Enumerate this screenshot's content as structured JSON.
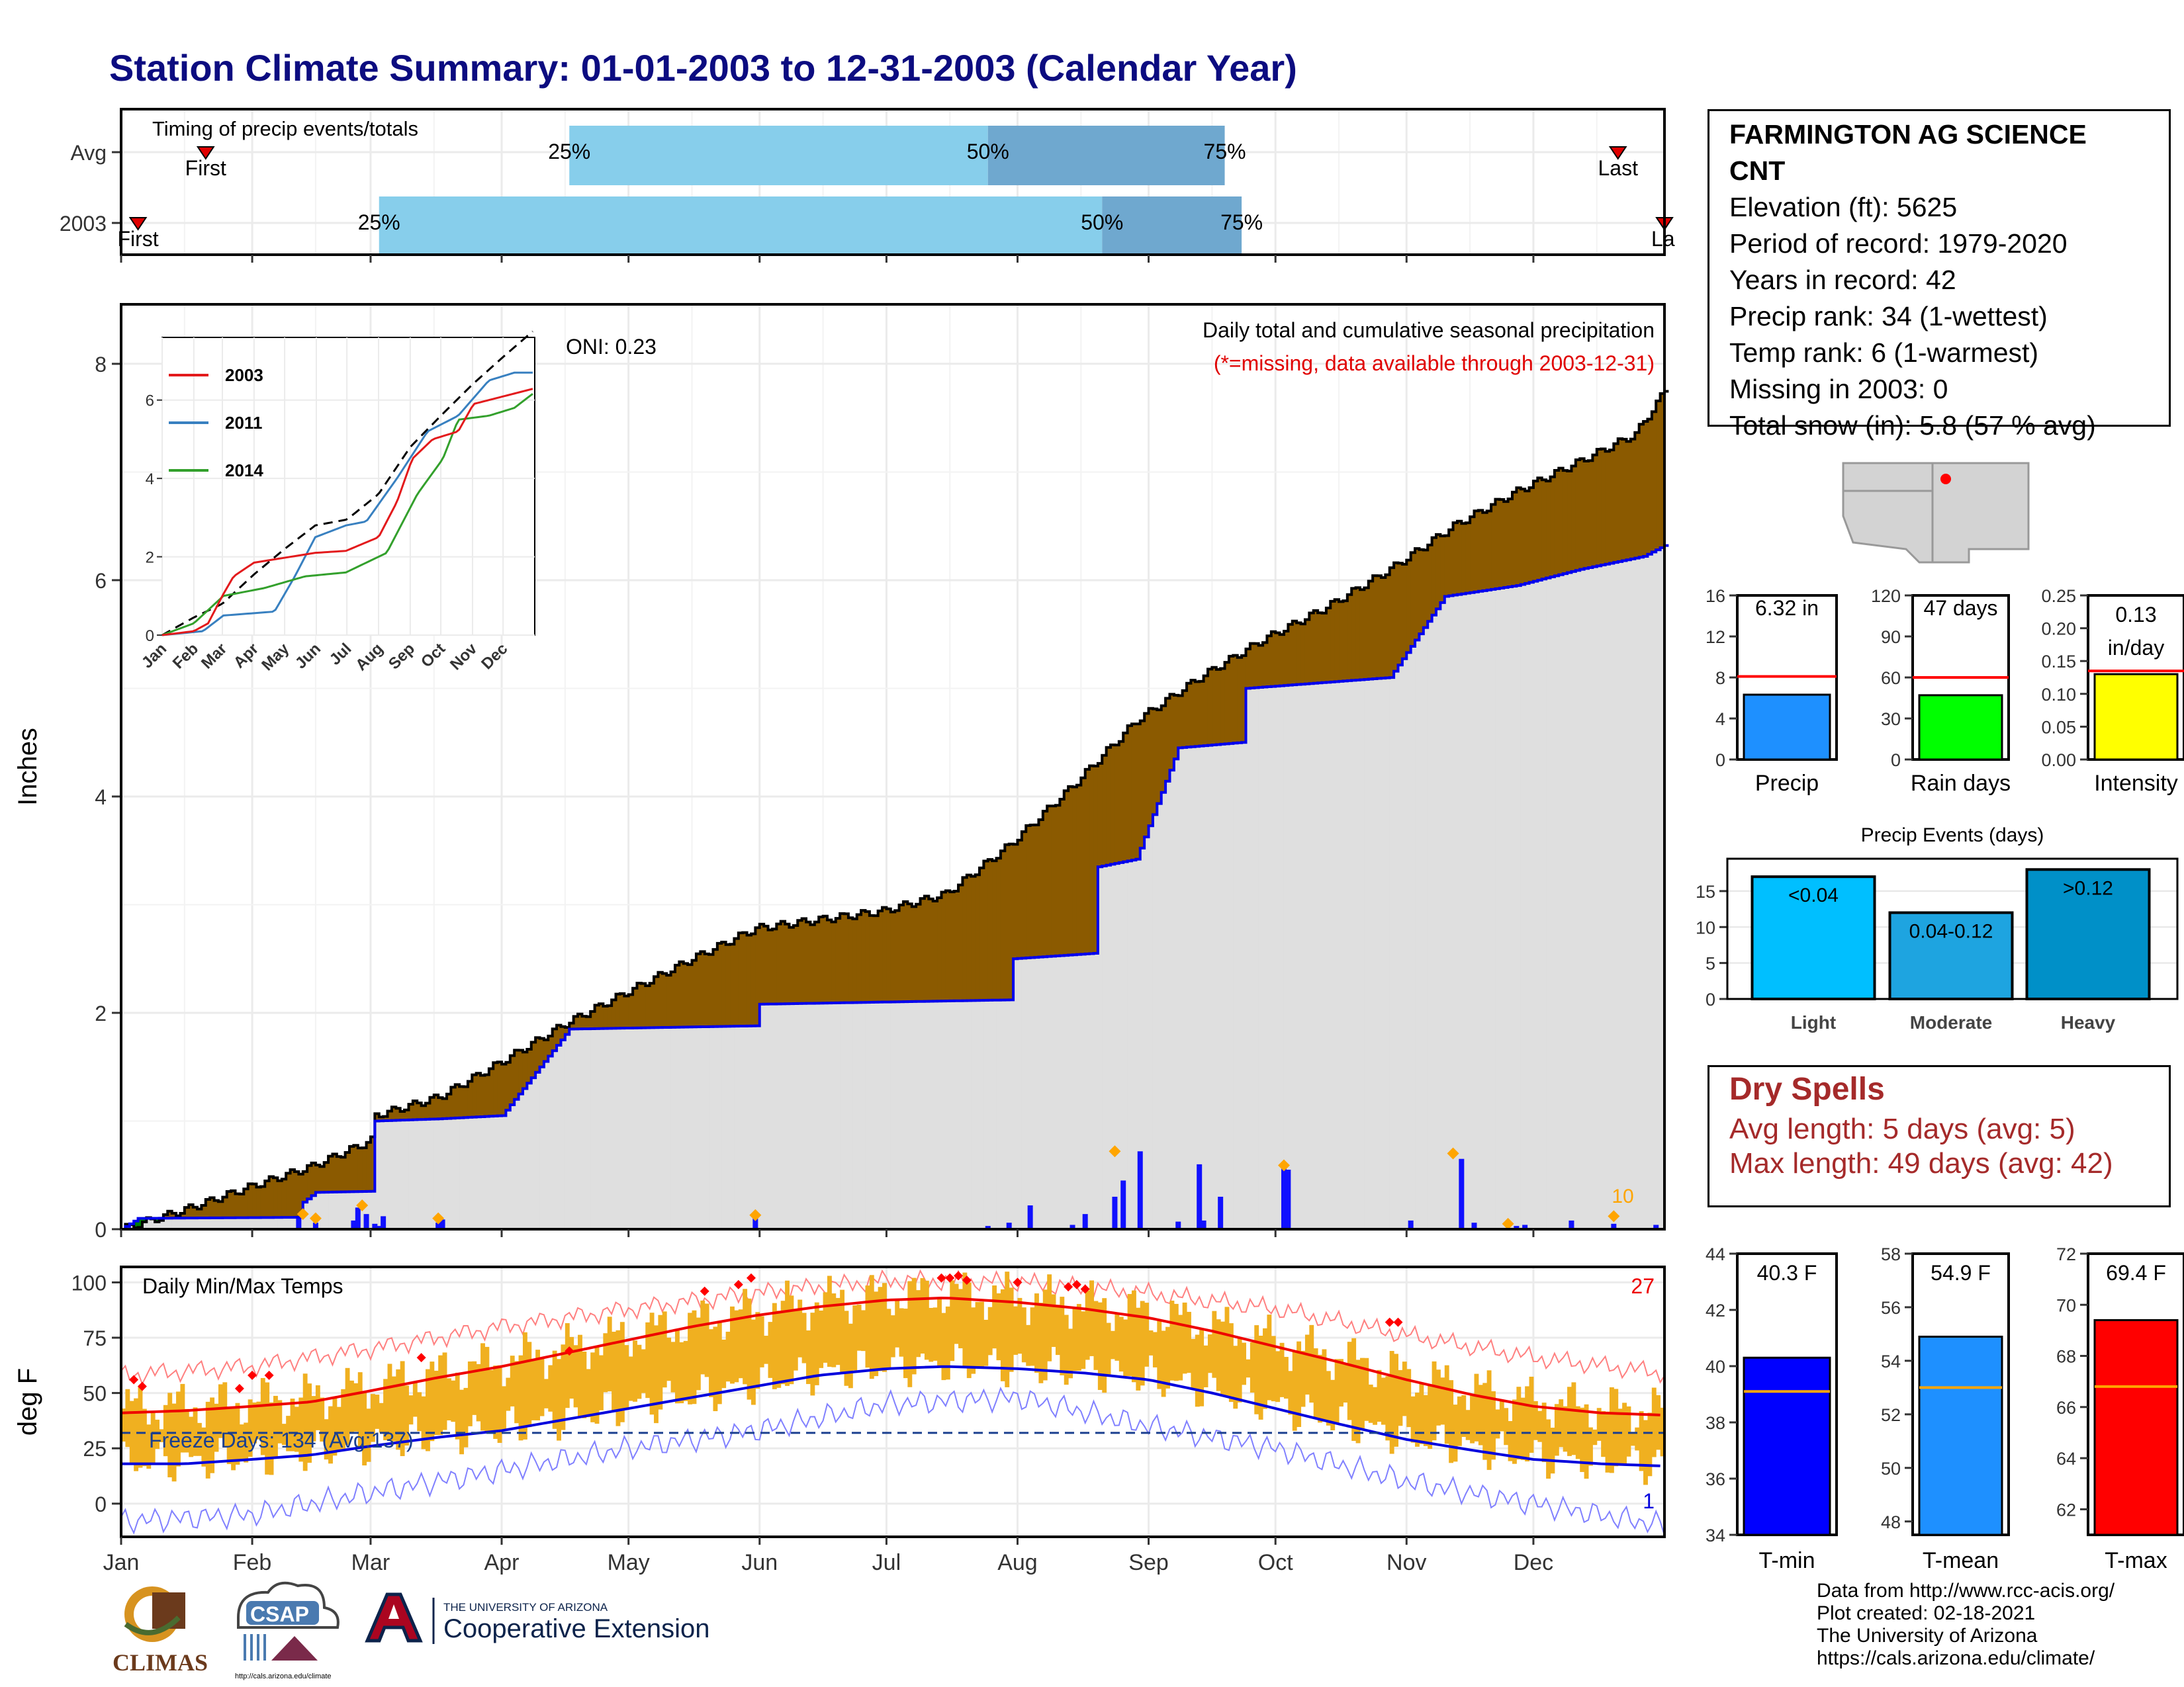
{
  "title": "Station Climate Summary: 01-01-2003 to 12-31-2003 (Calendar Year)",
  "months": [
    "Jan",
    "Feb",
    "Mar",
    "Apr",
    "May",
    "Jun",
    "Jul",
    "Aug",
    "Sep",
    "Oct",
    "Nov",
    "Dec"
  ],
  "station": {
    "name_line1": "FARMINGTON AG SCIENCE",
    "name_line2": "CNT",
    "elevation": "Elevation (ft): 5625",
    "period": "Period of record: 1979-2020",
    "years": "Years in record: 42",
    "precip_rank": "Precip rank: 34 (1-wettest)",
    "temp_rank": "Temp rank: 6 (1-warmest)",
    "missing": "Missing in 2003: 0",
    "snow": "Total snow (in): 5.8 (57 % avg)"
  },
  "timing": {
    "title": "Timing of precip events/totals",
    "avg_label": "Avg",
    "year_label": "2003",
    "first": "First",
    "last": "Last",
    "last_clipped": "La",
    "pct25": "25%",
    "pct50": "50%",
    "pct75": "75%",
    "avg_doy": {
      "first": 20,
      "p25": 106,
      "p50": 205,
      "p75": 261,
      "last": 354
    },
    "year_doy": {
      "first": 4,
      "p25": 61,
      "p50": 232,
      "p75": 265,
      "last": 365
    }
  },
  "precip": {
    "ylabel": "Inches",
    "header": "Daily total and cumulative seasonal precipitation",
    "missing_note": "(*=missing, data available through 2003-12-31)",
    "oni": "ONI: 0.23",
    "event_count": "10",
    "yticks": [
      "0",
      "2",
      "4",
      "6",
      "8"
    ],
    "avg_cum": [
      [
        0,
        0
      ],
      [
        15,
        0.18
      ],
      [
        31,
        0.4
      ],
      [
        45,
        0.58
      ],
      [
        59,
        0.82
      ],
      [
        60,
        1.05
      ],
      [
        75,
        1.22
      ],
      [
        90,
        1.55
      ],
      [
        105,
        1.9
      ],
      [
        120,
        2.2
      ],
      [
        135,
        2.5
      ],
      [
        150,
        2.78
      ],
      [
        165,
        2.86
      ],
      [
        180,
        2.94
      ],
      [
        195,
        3.1
      ],
      [
        210,
        3.55
      ],
      [
        225,
        4.1
      ],
      [
        240,
        4.7
      ],
      [
        255,
        5.1
      ],
      [
        270,
        5.45
      ],
      [
        285,
        5.75
      ],
      [
        300,
        6.1
      ],
      [
        315,
        6.5
      ],
      [
        330,
        6.82
      ],
      [
        345,
        7.1
      ],
      [
        358,
        7.35
      ],
      [
        365,
        7.75
      ]
    ],
    "year_cum": [
      [
        0,
        0
      ],
      [
        4,
        0.1
      ],
      [
        42,
        0.11
      ],
      [
        43,
        0.25
      ],
      [
        46,
        0.34
      ],
      [
        59,
        0.35
      ],
      [
        60,
        1.0
      ],
      [
        75,
        1.02
      ],
      [
        90,
        1.05
      ],
      [
        106,
        1.85
      ],
      [
        150,
        1.88
      ],
      [
        151,
        2.08
      ],
      [
        210,
        2.12
      ],
      [
        211,
        2.5
      ],
      [
        230,
        2.55
      ],
      [
        231,
        3.35
      ],
      [
        240,
        3.42
      ],
      [
        250,
        4.45
      ],
      [
        265,
        4.5
      ],
      [
        266,
        5.0
      ],
      [
        300,
        5.1
      ],
      [
        313,
        5.85
      ],
      [
        330,
        5.95
      ],
      [
        345,
        6.1
      ],
      [
        360,
        6.22
      ],
      [
        365,
        6.32
      ]
    ],
    "daily": [
      [
        42,
        0.1
      ],
      [
        46,
        0.06
      ],
      [
        55,
        0.08
      ],
      [
        56,
        0.2
      ],
      [
        58,
        0.14
      ],
      [
        60,
        0.05
      ],
      [
        61,
        0.03
      ],
      [
        62,
        0.12
      ],
      [
        75,
        0.06
      ],
      [
        76,
        0.09
      ],
      [
        100,
        0.01
      ],
      [
        150,
        0.1
      ],
      [
        205,
        0.03
      ],
      [
        210,
        0.06
      ],
      [
        215,
        0.22
      ],
      [
        225,
        0.04
      ],
      [
        228,
        0.14
      ],
      [
        235,
        0.3
      ],
      [
        237,
        0.45
      ],
      [
        240,
        0.01
      ],
      [
        241,
        0.72
      ],
      [
        250,
        0.07
      ],
      [
        255,
        0.6
      ],
      [
        256,
        0.08
      ],
      [
        260,
        0.3
      ],
      [
        275,
        0.62
      ],
      [
        276,
        0.55
      ],
      [
        305,
        0.08
      ],
      [
        317,
        0.65
      ],
      [
        320,
        0.06
      ],
      [
        330,
        0.03
      ],
      [
        332,
        0.04
      ],
      [
        343,
        0.08
      ],
      [
        353,
        0.05
      ],
      [
        363,
        0.04
      ]
    ],
    "event_markers": [
      [
        43,
        0.14
      ],
      [
        46,
        0.1
      ],
      [
        57,
        0.22
      ],
      [
        75,
        0.1
      ],
      [
        150,
        0.13
      ],
      [
        235,
        0.72
      ],
      [
        275,
        0.59
      ],
      [
        315,
        0.7
      ],
      [
        328,
        0.05
      ],
      [
        353,
        0.12
      ]
    ]
  },
  "inset": {
    "legend": [
      "2003",
      "2011",
      "2014"
    ],
    "colors": {
      "2003": "#e31a1c",
      "2011": "#3880c0",
      "2014": "#33a02c"
    },
    "yticks": [
      "0",
      "2",
      "4",
      "6"
    ],
    "xticks": [
      "Jan",
      "Feb",
      "Mar",
      "Apr",
      "May",
      "Jun",
      "Jul",
      "Aug",
      "Sep",
      "Oct",
      "Nov",
      "Dec"
    ],
    "avg": [
      [
        0,
        0
      ],
      [
        31,
        0.45
      ],
      [
        59,
        0.8
      ],
      [
        90,
        1.55
      ],
      [
        120,
        2.2
      ],
      [
        150,
        2.8
      ],
      [
        181,
        2.95
      ],
      [
        212,
        3.6
      ],
      [
        243,
        4.8
      ],
      [
        273,
        5.6
      ],
      [
        304,
        6.4
      ],
      [
        334,
        7.1
      ],
      [
        365,
        7.8
      ]
    ],
    "s2003": [
      [
        0,
        0
      ],
      [
        31,
        0.1
      ],
      [
        45,
        0.3
      ],
      [
        60,
        1.05
      ],
      [
        70,
        1.5
      ],
      [
        90,
        1.85
      ],
      [
        150,
        2.1
      ],
      [
        180,
        2.15
      ],
      [
        212,
        2.5
      ],
      [
        230,
        3.4
      ],
      [
        245,
        4.5
      ],
      [
        265,
        5.0
      ],
      [
        290,
        5.2
      ],
      [
        305,
        5.9
      ],
      [
        335,
        6.1
      ],
      [
        365,
        6.3
      ]
    ],
    "s2011": [
      [
        0,
        0
      ],
      [
        40,
        0.1
      ],
      [
        60,
        0.5
      ],
      [
        110,
        0.6
      ],
      [
        130,
        1.5
      ],
      [
        150,
        2.5
      ],
      [
        180,
        2.8
      ],
      [
        200,
        2.9
      ],
      [
        230,
        4.0
      ],
      [
        260,
        5.2
      ],
      [
        290,
        5.6
      ],
      [
        320,
        6.5
      ],
      [
        345,
        6.7
      ],
      [
        365,
        6.7
      ]
    ],
    "s2014": [
      [
        0,
        0
      ],
      [
        31,
        0.3
      ],
      [
        60,
        1.0
      ],
      [
        100,
        1.2
      ],
      [
        140,
        1.5
      ],
      [
        180,
        1.6
      ],
      [
        220,
        2.1
      ],
      [
        250,
        3.6
      ],
      [
        275,
        4.5
      ],
      [
        290,
        5.5
      ],
      [
        320,
        5.6
      ],
      [
        345,
        5.8
      ],
      [
        365,
        6.2
      ]
    ]
  },
  "temps": {
    "ylabel": "deg F",
    "title": "Daily Min/Max Temps",
    "freeze": "Freeze Days: 134 (Avg:137)",
    "record_high_count": "27",
    "record_low_count": "1",
    "yticks": [
      "0",
      "25",
      "50",
      "75",
      "100"
    ],
    "freeze_line": 32,
    "avg_max": [
      [
        0,
        41
      ],
      [
        15,
        42
      ],
      [
        31,
        44
      ],
      [
        45,
        46
      ],
      [
        59,
        51
      ],
      [
        75,
        57
      ],
      [
        90,
        62
      ],
      [
        105,
        68
      ],
      [
        120,
        74
      ],
      [
        135,
        80
      ],
      [
        150,
        85
      ],
      [
        165,
        89
      ],
      [
        181,
        92
      ],
      [
        195,
        93
      ],
      [
        212,
        91
      ],
      [
        228,
        88
      ],
      [
        243,
        84
      ],
      [
        258,
        78
      ],
      [
        273,
        71
      ],
      [
        288,
        64
      ],
      [
        304,
        56
      ],
      [
        320,
        49
      ],
      [
        334,
        44
      ],
      [
        350,
        41
      ],
      [
        365,
        40
      ]
    ],
    "avg_min": [
      [
        0,
        18
      ],
      [
        15,
        18
      ],
      [
        31,
        20
      ],
      [
        45,
        22
      ],
      [
        59,
        26
      ],
      [
        75,
        30
      ],
      [
        90,
        33
      ],
      [
        105,
        38
      ],
      [
        120,
        43
      ],
      [
        135,
        48
      ],
      [
        150,
        53
      ],
      [
        165,
        58
      ],
      [
        181,
        61
      ],
      [
        195,
        62
      ],
      [
        212,
        61
      ],
      [
        228,
        59
      ],
      [
        243,
        56
      ],
      [
        258,
        50
      ],
      [
        273,
        43
      ],
      [
        288,
        36
      ],
      [
        304,
        29
      ],
      [
        320,
        24
      ],
      [
        334,
        20
      ],
      [
        350,
        18
      ],
      [
        365,
        17
      ]
    ],
    "rec_max": [
      [
        0,
        58
      ],
      [
        31,
        62
      ],
      [
        59,
        70
      ],
      [
        90,
        80
      ],
      [
        120,
        88
      ],
      [
        150,
        95
      ],
      [
        181,
        101
      ],
      [
        212,
        100
      ],
      [
        243,
        95
      ],
      [
        273,
        88
      ],
      [
        304,
        76
      ],
      [
        334,
        66
      ],
      [
        365,
        59
      ]
    ],
    "rec_min": [
      [
        0,
        -8
      ],
      [
        31,
        -5
      ],
      [
        59,
        5
      ],
      [
        90,
        15
      ],
      [
        120,
        25
      ],
      [
        150,
        33
      ],
      [
        181,
        45
      ],
      [
        212,
        48
      ],
      [
        243,
        35
      ],
      [
        273,
        25
      ],
      [
        304,
        10
      ],
      [
        334,
        0
      ],
      [
        365,
        -10
      ]
    ],
    "record_dots": [
      [
        3,
        56
      ],
      [
        5,
        53
      ],
      [
        28,
        52
      ],
      [
        31,
        58
      ],
      [
        35,
        58
      ],
      [
        71,
        66
      ],
      [
        106,
        69
      ],
      [
        138,
        96
      ],
      [
        146,
        99
      ],
      [
        149,
        102
      ],
      [
        194,
        102
      ],
      [
        196,
        102
      ],
      [
        198,
        103
      ],
      [
        200,
        101
      ],
      [
        212,
        100
      ],
      [
        224,
        98
      ],
      [
        226,
        99
      ],
      [
        228,
        97
      ],
      [
        300,
        82
      ],
      [
        302,
        82
      ]
    ]
  },
  "summary": {
    "precip": {
      "label": "Precip",
      "value": "6.32 in",
      "v": 6.32,
      "avg": 8.1,
      "ymax": 16,
      "yticks": [
        "0",
        "4",
        "8",
        "12",
        "16"
      ],
      "color": "#1e90ff"
    },
    "raindays": {
      "label": "Rain days",
      "value": "47 days",
      "v": 47,
      "avg": 60,
      "ymax": 120,
      "yticks": [
        "0",
        "30",
        "60",
        "90",
        "120"
      ],
      "color": "#00ff00"
    },
    "intensity": {
      "label": "Intensity",
      "value": "0.13",
      "unit": "in/day",
      "v": 0.13,
      "avg": 0.135,
      "ymax": 0.25,
      "yticks": [
        "0.00",
        "0.05",
        "0.10",
        "0.15",
        "0.20",
        "0.25"
      ],
      "color": "#ffff00"
    }
  },
  "events": {
    "title": "Precip Events (days)",
    "yticks": [
      "0",
      "5",
      "10",
      "15"
    ],
    "bars": [
      {
        "cat": "Light",
        "label": "<0.04",
        "v": 17,
        "color": "#00bfff"
      },
      {
        "cat": "Moderate",
        "label": "0.04-0.12",
        "v": 12,
        "color": "#1ea4e0"
      },
      {
        "cat": "Heavy",
        "label": ">0.12",
        "v": 18,
        "color": "#0090c8"
      }
    ]
  },
  "dry": {
    "title": "Dry Spells",
    "avg": "Avg length: 5 days (avg: 5)",
    "max": "Max length: 49 days (avg: 42)"
  },
  "tbars": {
    "tmin": {
      "label": "T-min",
      "value": "40.3 F",
      "v": 40.3,
      "avg": 39.1,
      "ymin": 34,
      "ymax": 44,
      "yticks": [
        "34",
        "36",
        "38",
        "40",
        "42",
        "44"
      ],
      "color": "#0000ff"
    },
    "tmean": {
      "label": "T-mean",
      "value": "54.9 F",
      "v": 54.9,
      "avg": 53.0,
      "ymin": 47.5,
      "ymax": 58,
      "yticks": [
        "48",
        "50",
        "52",
        "54",
        "56",
        "58"
      ],
      "color": "#1e90ff"
    },
    "tmax": {
      "label": "T-max",
      "value": "69.4 F",
      "v": 69.4,
      "avg": 66.8,
      "ymin": 61,
      "ymax": 72,
      "yticks": [
        "62",
        "64",
        "66",
        "68",
        "70",
        "72"
      ],
      "color": "#ff0000"
    }
  },
  "credits": [
    "Data from http://www.rcc-acis.org/",
    "Plot created: 02-18-2021",
    "The University of Arizona",
    "https://cals.arizona.edu/climate/"
  ],
  "logos": {
    "climas": "CLIMAS",
    "csap": "CSAP",
    "csap_url": "http://cals.arizona.edu/climate",
    "ua_line1": "THE UNIVERSITY OF ARIZONA",
    "ua_line2": "Cooperative Extension"
  },
  "colors": {
    "brown": "#8b5a00",
    "green": "#008000",
    "gray": "#dfdfdf",
    "navy": "#0c0c80",
    "orange": "#f0b020",
    "light_blue": "#87ceeb",
    "mid_blue": "#6fa8cf"
  }
}
